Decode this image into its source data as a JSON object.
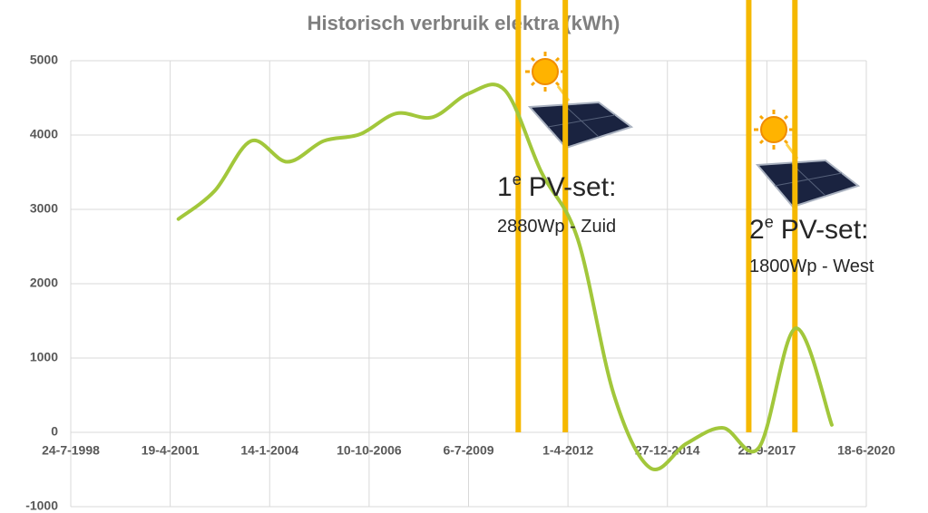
{
  "chart_data": {
    "type": "line",
    "title": "Historisch verbruik elektra  (kWh)",
    "x": [
      "2001-07-11",
      "2002-07-11",
      "2003-07-11",
      "2004-07-10",
      "2005-07-10",
      "2006-07-10",
      "2007-07-10",
      "2008-07-09",
      "2009-07-09",
      "2010-07-09",
      "2011-07-09",
      "2012-07-08",
      "2013-07-08",
      "2014-07-08",
      "2015-07-08",
      "2016-07-07",
      "2017-07-07",
      "2018-07-07",
      "2019-07-07"
    ],
    "values": [
      2870,
      3250,
      3920,
      3640,
      3920,
      4010,
      4290,
      4240,
      4560,
      4600,
      3500,
      2600,
      500,
      -480,
      -150,
      60,
      -200,
      1400,
      100
    ],
    "color": "#a2c73b",
    "xlim": [
      "1998-07-24",
      "2020-06-18"
    ],
    "xticks": [
      {
        "value": "1998-07-24",
        "label": "24-7-1998"
      },
      {
        "value": "2001-04-19",
        "label": "19-4-2001"
      },
      {
        "value": "2004-01-14",
        "label": "14-1-2004"
      },
      {
        "value": "2006-10-10",
        "label": "10-10-2006"
      },
      {
        "value": "2009-07-06",
        "label": "6-7-2009"
      },
      {
        "value": "2012-04-01",
        "label": "1-4-2012"
      },
      {
        "value": "2014-12-27",
        "label": "27-12-2014"
      },
      {
        "value": "2017-09-22",
        "label": "22-9-2017"
      },
      {
        "value": "2020-06-18",
        "label": "18-6-2020"
      }
    ],
    "ylim": [
      -1000,
      5000
    ],
    "yticks": [
      -1000,
      0,
      1000,
      2000,
      3000,
      4000,
      5000
    ],
    "grid": true,
    "annotations": [
      {
        "lines": [
          "2010-11-18",
          "2012-03-05"
        ],
        "number": "1",
        "sup": "e",
        "text": "PV-set:",
        "detail": "2880Wp - Zuid",
        "color": "#f5b800"
      },
      {
        "lines": [
          "2017-03-24",
          "2018-07-01"
        ],
        "number": "2",
        "sup": "e",
        "text": "PV-set:",
        "detail": "1800Wp - West",
        "color": "#f5b800"
      }
    ]
  }
}
